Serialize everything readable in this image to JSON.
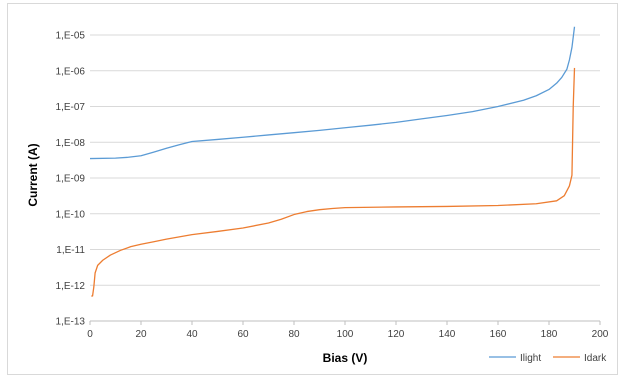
{
  "chart_data": {
    "type": "line",
    "xlabel": "Bias (V)",
    "ylabel": "Current (A)",
    "xlim": [
      0,
      200
    ],
    "ylim": [
      1e-13,
      1e-05
    ],
    "y_scale": "log",
    "grid": true,
    "legend_position": "bottom-right",
    "x_ticks": [
      0,
      20,
      40,
      60,
      80,
      100,
      120,
      140,
      160,
      180,
      200
    ],
    "y_ticks": [
      {
        "value": 1e-05,
        "label": "1,E-05"
      },
      {
        "value": 1e-06,
        "label": "1,E-06"
      },
      {
        "value": 1e-07,
        "label": "1,E-07"
      },
      {
        "value": 1e-08,
        "label": "1,E-08"
      },
      {
        "value": 1e-09,
        "label": "1,E-09"
      },
      {
        "value": 1e-10,
        "label": "1,E-10"
      },
      {
        "value": 1e-11,
        "label": "1,E-11"
      },
      {
        "value": 1e-12,
        "label": "1,E-12"
      },
      {
        "value": 1e-13,
        "label": "1,E-13"
      }
    ],
    "series": [
      {
        "name": "Ilight",
        "color": "#5b9bd5",
        "points": [
          [
            0,
            3.5e-09
          ],
          [
            10,
            3.6e-09
          ],
          [
            15,
            3.8e-09
          ],
          [
            20,
            4.2e-09
          ],
          [
            25,
            5.3e-09
          ],
          [
            30,
            6.8e-09
          ],
          [
            35,
            8.5e-09
          ],
          [
            40,
            1.05e-08
          ],
          [
            50,
            1.2e-08
          ],
          [
            60,
            1.38e-08
          ],
          [
            70,
            1.6e-08
          ],
          [
            80,
            1.85e-08
          ],
          [
            90,
            2.15e-08
          ],
          [
            100,
            2.55e-08
          ],
          [
            110,
            3e-08
          ],
          [
            120,
            3.6e-08
          ],
          [
            130,
            4.5e-08
          ],
          [
            140,
            5.6e-08
          ],
          [
            150,
            7.2e-08
          ],
          [
            160,
            1e-07
          ],
          [
            170,
            1.5e-07
          ],
          [
            175,
            2e-07
          ],
          [
            180,
            3e-07
          ],
          [
            183,
            4.5e-07
          ],
          [
            185,
            6.5e-07
          ],
          [
            187,
            1.1e-06
          ],
          [
            188,
            2e-06
          ],
          [
            189,
            4.5e-06
          ],
          [
            190,
            1.7e-05
          ]
        ]
      },
      {
        "name": "Idark",
        "color": "#ed7d31",
        "points": [
          [
            0.5,
            5e-13
          ],
          [
            1,
            5e-13
          ],
          [
            1.5,
            9e-13
          ],
          [
            2,
            2.2e-12
          ],
          [
            3,
            3.6e-12
          ],
          [
            5,
            5e-12
          ],
          [
            8,
            7e-12
          ],
          [
            12,
            9.5e-12
          ],
          [
            16,
            1.2e-11
          ],
          [
            20,
            1.4e-11
          ],
          [
            25,
            1.65e-11
          ],
          [
            30,
            1.95e-11
          ],
          [
            35,
            2.25e-11
          ],
          [
            40,
            2.6e-11
          ],
          [
            50,
            3.2e-11
          ],
          [
            60,
            4e-11
          ],
          [
            70,
            5.5e-11
          ],
          [
            75,
            7e-11
          ],
          [
            80,
            9.5e-11
          ],
          [
            85,
            1.15e-10
          ],
          [
            90,
            1.3e-10
          ],
          [
            95,
            1.4e-10
          ],
          [
            100,
            1.48e-10
          ],
          [
            120,
            1.55e-10
          ],
          [
            140,
            1.6e-10
          ],
          [
            160,
            1.7e-10
          ],
          [
            175,
            1.9e-10
          ],
          [
            183,
            2.3e-10
          ],
          [
            186,
            3.2e-10
          ],
          [
            188,
            6e-10
          ],
          [
            189,
            1.2e-09
          ],
          [
            189.5,
            1e-07
          ],
          [
            190,
            1.2e-06
          ]
        ]
      }
    ]
  }
}
